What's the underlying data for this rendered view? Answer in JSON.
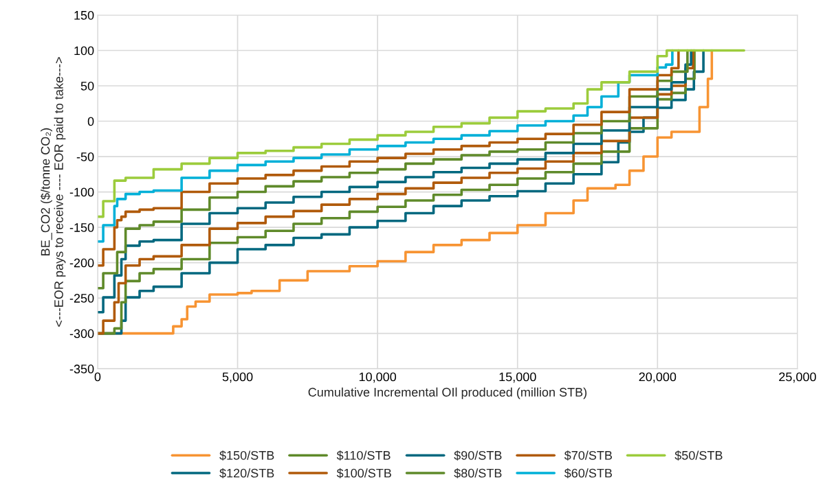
{
  "chart_data": {
    "type": "step",
    "xlabel": "Cumulative Incremental OIl produced (million STB)",
    "ylabel": "BE_CO2 ($/tonne CO₂)\n<---EOR pays to receive ---- EOR paid to take--->",
    "xlim": [
      0,
      25000
    ],
    "xticks": [
      0,
      {
        "value": 5000,
        "label": "5,000"
      },
      {
        "value": 10000,
        "label": "10,000"
      },
      {
        "value": 15000,
        "label": "15,000"
      },
      {
        "value": 20000,
        "label": "20,000"
      },
      {
        "value": 25000,
        "label": "25,000"
      }
    ],
    "ylim": [
      -350,
      150
    ],
    "yticks": [
      -350,
      -300,
      -250,
      -200,
      -150,
      -100,
      -50,
      0,
      50,
      100,
      150
    ],
    "grid": true,
    "legend": "bottom",
    "line_style": "solid",
    "series": [
      {
        "name": "$150/STB",
        "color": "#f79433",
        "x": [
          0,
          2600,
          2700,
          3000,
          3200,
          3500,
          4000,
          5000,
          5500,
          6500,
          7500,
          9000,
          10000,
          11000,
          12000,
          13000,
          14000,
          15000,
          16000,
          17000,
          17500,
          18500,
          19000,
          19500,
          20000,
          20500,
          21300,
          21500,
          21800,
          21940
        ],
        "values": [
          -300,
          -300,
          -290,
          -280,
          -262,
          -255,
          -245,
          -243,
          -240,
          -225,
          -212,
          -205,
          -198,
          -185,
          -175,
          -168,
          -158,
          -147,
          -130,
          -112,
          -95,
          -90,
          -70,
          -50,
          -23,
          -15,
          -15,
          20,
          60,
          100
        ]
      },
      {
        "name": "$120/STB",
        "color": "#02687f",
        "x": [
          0,
          850,
          1000,
          1500,
          2000,
          3000,
          4000,
          5000,
          6000,
          7000,
          8000,
          9000,
          10000,
          11000,
          12000,
          13000,
          14000,
          15000,
          16000,
          17000,
          18000,
          18600,
          19000,
          19500,
          20000,
          20500,
          21000,
          21300,
          21640
        ],
        "values": [
          -300,
          -282,
          -249,
          -240,
          -234,
          -215,
          -200,
          -181,
          -175,
          -165,
          -160,
          -150,
          -141,
          -130,
          -120,
          -112,
          -106,
          -99,
          -88,
          -75,
          -58,
          -30,
          -15,
          5,
          19,
          30,
          45,
          70,
          100
        ]
      },
      {
        "name": "$110/STB",
        "color": "#5f8a2a",
        "x": [
          0,
          600,
          850,
          1000,
          1500,
          2000,
          3000,
          4000,
          5000,
          6000,
          7000,
          8000,
          9000,
          10000,
          11000,
          12000,
          13000,
          14000,
          15000,
          16000,
          17000,
          18000,
          19000,
          20000,
          20500,
          21000,
          21320
        ],
        "values": [
          -300,
          -293,
          -256,
          -226,
          -215,
          -209,
          -195,
          -172,
          -164,
          -155,
          -145,
          -137,
          -128,
          -121,
          -112,
          -104,
          -97,
          -90,
          -81,
          -72,
          -60,
          -43,
          -10,
          31,
          40,
          60,
          100
        ]
      },
      {
        "name": "$100/STB",
        "color": "#b05a0a",
        "x": [
          0,
          200,
          600,
          750,
          1000,
          1500,
          2000,
          3000,
          4000,
          5000,
          6000,
          7000,
          8000,
          9000,
          10000,
          11000,
          12000,
          13000,
          14000,
          15000,
          16000,
          17000,
          18000,
          19000,
          20000,
          20500,
          21000,
          21270
        ],
        "values": [
          -300,
          -282,
          -256,
          -229,
          -204,
          -195,
          -191,
          -175,
          -152,
          -144,
          -135,
          -127,
          -118,
          -110,
          -103,
          -95,
          -87,
          -80,
          -73,
          -67,
          -57,
          -45,
          -28,
          5,
          38,
          50,
          75,
          100
        ]
      },
      {
        "name": "$90/STB",
        "color": "#02687f",
        "x": [
          0,
          200,
          600,
          850,
          1000,
          1500,
          2000,
          3000,
          4000,
          5000,
          6000,
          7000,
          8000,
          9000,
          10000,
          11000,
          12000,
          13000,
          14000,
          15000,
          16000,
          17000,
          18000,
          19000,
          20000,
          20500,
          21000,
          21200
        ],
        "values": [
          -270,
          -249,
          -218,
          -195,
          -176,
          -170,
          -168,
          -145,
          -130,
          -123,
          -115,
          -107,
          -100,
          -93,
          -86,
          -79,
          -72,
          -66,
          -60,
          -54,
          -45,
          -32,
          -13,
          20,
          45,
          55,
          80,
          100
        ]
      },
      {
        "name": "$80/STB",
        "color": "#5f8a2a",
        "x": [
          0,
          200,
          700,
          1000,
          1500,
          2000,
          3000,
          4000,
          5000,
          6000,
          7000,
          8000,
          9000,
          10000,
          11000,
          12000,
          13000,
          14000,
          15000,
          16000,
          17000,
          18000,
          19000,
          20000,
          20500,
          21070
        ],
        "values": [
          -236,
          -215,
          -185,
          -152,
          -147,
          -142,
          -125,
          -108,
          -100,
          -92,
          -85,
          -79,
          -73,
          -68,
          -60,
          -54,
          -48,
          -43,
          -40,
          -30,
          -17,
          0,
          35,
          57,
          70,
          100
        ]
      },
      {
        "name": "$70/STB",
        "color": "#b05a0a",
        "x": [
          0,
          200,
          600,
          700,
          850,
          1000,
          1500,
          2000,
          3000,
          4000,
          5000,
          6000,
          7000,
          8000,
          9000,
          10000,
          11000,
          12000,
          13000,
          14000,
          15000,
          16000,
          17000,
          18000,
          19000,
          20000,
          20500,
          20750
        ],
        "values": [
          -204,
          -181,
          -150,
          -140,
          -135,
          -128,
          -125,
          -123,
          -100,
          -88,
          -81,
          -76,
          -70,
          -64,
          -57,
          -52,
          -46,
          -40,
          -35,
          -30,
          -25,
          -18,
          -5,
          13,
          45,
          65,
          75,
          100
        ]
      },
      {
        "name": "$60/STB",
        "color": "#00b0d8",
        "x": [
          0,
          200,
          600,
          700,
          1000,
          1500,
          2000,
          3000,
          4000,
          5000,
          6000,
          7000,
          8000,
          9000,
          10000,
          11000,
          12000,
          13000,
          14000,
          15000,
          16000,
          17000,
          17500,
          18000,
          18600,
          19000,
          20000,
          20300,
          20530
        ],
        "values": [
          -170,
          -147,
          -120,
          -110,
          -103,
          -100,
          -98,
          -80,
          -70,
          -62,
          -57,
          -52,
          -47,
          -40,
          -35,
          -30,
          -25,
          -20,
          -14,
          -6,
          0,
          8,
          20,
          35,
          55,
          65,
          76,
          80,
          100
        ]
      },
      {
        "name": "$50/STB",
        "color": "#9ccc3c",
        "x": [
          0,
          200,
          600,
          1000,
          2000,
          3000,
          4000,
          5000,
          6000,
          7000,
          8000,
          9000,
          10000,
          11000,
          12000,
          13000,
          14000,
          15000,
          16000,
          17000,
          17500,
          18000,
          19000,
          20000,
          20330,
          23090
        ],
        "values": [
          -135,
          -113,
          -84,
          -80,
          -68,
          -60,
          -52,
          -45,
          -42,
          -37,
          -32,
          -26,
          -20,
          -15,
          -8,
          -3,
          5,
          14,
          18,
          25,
          45,
          55,
          70,
          92,
          100,
          100
        ]
      }
    ]
  }
}
